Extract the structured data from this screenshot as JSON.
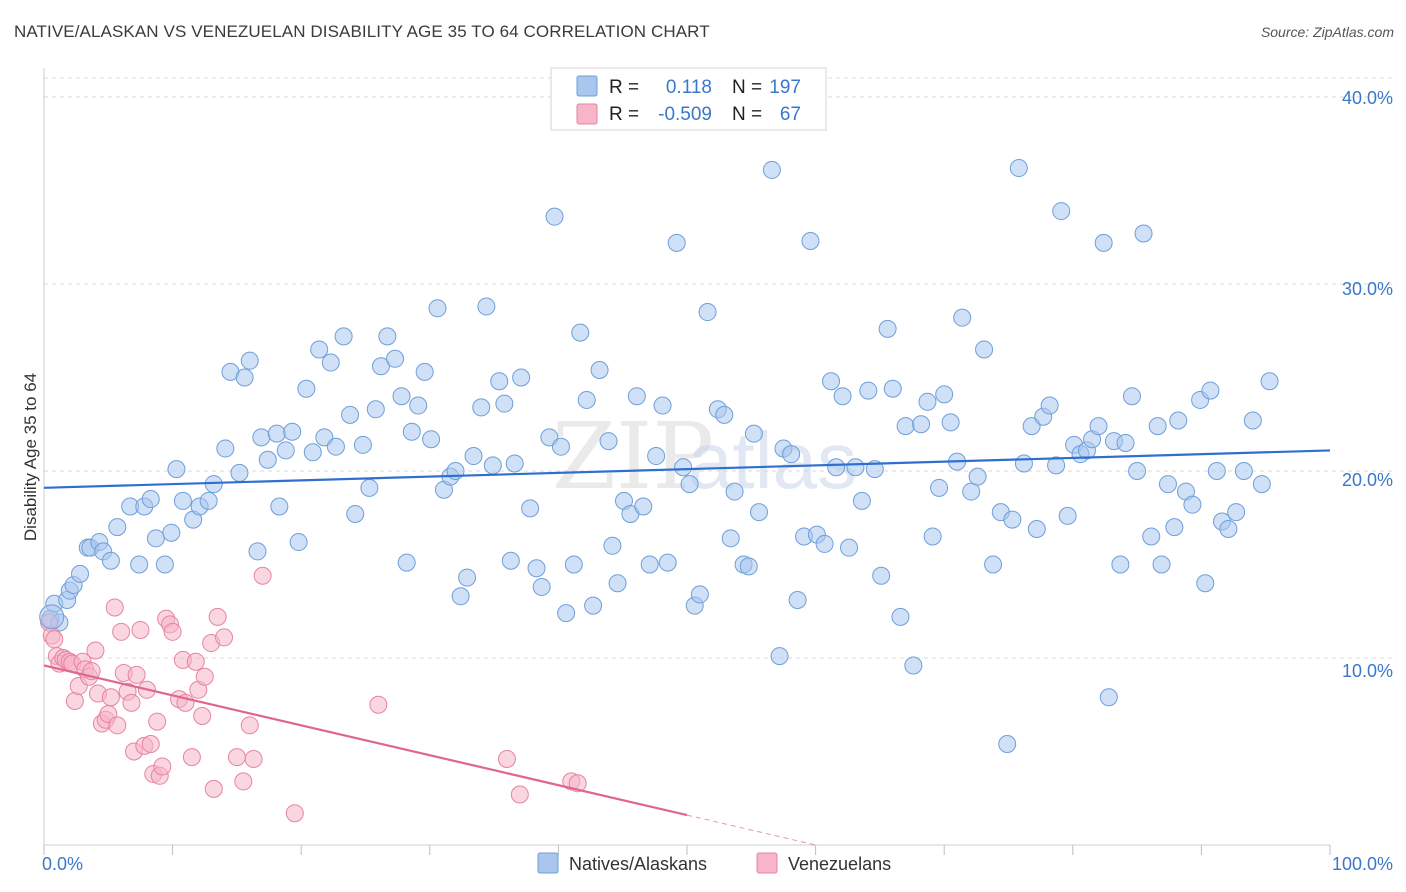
{
  "title": "NATIVE/ALASKAN VS VENEZUELAN DISABILITY AGE 35 TO 64 CORRELATION CHART",
  "source": "Source: ZipAtlas.com",
  "watermark": {
    "zip": "ZIP",
    "atlas": "atlas"
  },
  "colors": {
    "blue_fill": "#a9c6ee",
    "blue_stroke": "#6e9fd9",
    "blue_line": "#2f6fcf",
    "pink_fill": "#f6b5c9",
    "pink_stroke": "#e7859f",
    "pink_line": "#e0668f",
    "grid": "#d9d9d9",
    "tick_text": "#3a78c9"
  },
  "legend": {
    "rows": [
      {
        "r_label": "R =",
        "r_value": "0.118",
        "n_label": "N =",
        "n_value": "197"
      },
      {
        "r_label": "R =",
        "r_value": "-0.509",
        "n_label": "N =",
        "n_value": "67"
      }
    ]
  },
  "chart_data": {
    "type": "scatter",
    "title": "NATIVE/ALASKAN VS VENEZUELAN DISABILITY AGE 35 TO 64 CORRELATION CHART",
    "xlabel": "",
    "ylabel": "Disability Age 35 to 64",
    "xlim": [
      0,
      100
    ],
    "ylim": [
      0,
      40
    ],
    "x_tick_labels": [
      "0.0%",
      "100.0%"
    ],
    "y_ticks": [
      10,
      20,
      30,
      40
    ],
    "y_tick_labels": [
      "10.0%",
      "20.0%",
      "30.0%",
      "40.0%"
    ],
    "legend_placement": "bottom-center",
    "series": [
      {
        "name": "Natives/Alaskans",
        "r": 0.118,
        "n": 197,
        "trend": {
          "x": [
            0,
            100
          ],
          "y": [
            19.1,
            21.1
          ]
        },
        "points": [
          [
            0.5,
            12.1
          ],
          [
            0.8,
            12.9
          ],
          [
            1.2,
            11.9
          ],
          [
            1.8,
            13.1
          ],
          [
            2,
            13.6
          ],
          [
            2.3,
            13.9
          ],
          [
            2.8,
            14.5
          ],
          [
            3.4,
            15.9
          ],
          [
            3.6,
            15.9
          ],
          [
            4.3,
            16.2
          ],
          [
            4.6,
            15.7
          ],
          [
            5.2,
            15.2
          ],
          [
            5.7,
            17.0
          ],
          [
            6.7,
            18.1
          ],
          [
            7.4,
            15.0
          ],
          [
            7.8,
            18.1
          ],
          [
            8.3,
            18.5
          ],
          [
            8.7,
            16.4
          ],
          [
            9.4,
            15.0
          ],
          [
            9.9,
            16.7
          ],
          [
            10.3,
            20.1
          ],
          [
            10.8,
            18.4
          ],
          [
            11.6,
            17.4
          ],
          [
            12.1,
            18.1
          ],
          [
            12.8,
            18.4
          ],
          [
            13.2,
            19.3
          ],
          [
            14.1,
            21.2
          ],
          [
            14.5,
            25.3
          ],
          [
            15.2,
            19.9
          ],
          [
            15.6,
            25.0
          ],
          [
            16.0,
            25.9
          ],
          [
            16.6,
            15.7
          ],
          [
            16.9,
            21.8
          ],
          [
            17.4,
            20.6
          ],
          [
            18.1,
            22.0
          ],
          [
            18.3,
            18.1
          ],
          [
            18.8,
            21.1
          ],
          [
            19.3,
            22.1
          ],
          [
            19.8,
            16.2
          ],
          [
            20.4,
            24.4
          ],
          [
            20.9,
            21.0
          ],
          [
            21.4,
            26.5
          ],
          [
            21.8,
            21.8
          ],
          [
            22.3,
            25.8
          ],
          [
            22.7,
            21.3
          ],
          [
            23.3,
            27.2
          ],
          [
            23.8,
            23.0
          ],
          [
            24.2,
            17.7
          ],
          [
            24.8,
            21.4
          ],
          [
            25.3,
            19.1
          ],
          [
            25.8,
            23.3
          ],
          [
            26.2,
            25.6
          ],
          [
            26.7,
            27.2
          ],
          [
            27.3,
            26.0
          ],
          [
            27.8,
            24.0
          ],
          [
            28.2,
            15.1
          ],
          [
            28.6,
            22.1
          ],
          [
            29.1,
            23.5
          ],
          [
            29.6,
            25.3
          ],
          [
            30.1,
            21.7
          ],
          [
            30.6,
            28.7
          ],
          [
            31.1,
            19.0
          ],
          [
            31.6,
            19.7
          ],
          [
            32.0,
            20.0
          ],
          [
            32.4,
            13.3
          ],
          [
            32.9,
            14.3
          ],
          [
            33.4,
            20.8
          ],
          [
            34.0,
            23.4
          ],
          [
            34.4,
            28.8
          ],
          [
            34.9,
            20.3
          ],
          [
            35.4,
            24.8
          ],
          [
            35.8,
            23.6
          ],
          [
            36.3,
            15.2
          ],
          [
            36.6,
            20.4
          ],
          [
            37.1,
            25.0
          ],
          [
            37.8,
            18.0
          ],
          [
            38.3,
            14.8
          ],
          [
            38.7,
            13.8
          ],
          [
            39.3,
            21.8
          ],
          [
            39.7,
            33.6
          ],
          [
            40.2,
            21.3
          ],
          [
            40.6,
            12.4
          ],
          [
            41.2,
            15.0
          ],
          [
            41.7,
            27.4
          ],
          [
            42.2,
            23.8
          ],
          [
            42.7,
            12.8
          ],
          [
            43.2,
            25.4
          ],
          [
            43.9,
            21.6
          ],
          [
            44.2,
            16.0
          ],
          [
            44.6,
            14.0
          ],
          [
            45.1,
            18.4
          ],
          [
            45.6,
            17.7
          ],
          [
            46.1,
            24.0
          ],
          [
            46.6,
            18.1
          ],
          [
            47.1,
            15.0
          ],
          [
            47.6,
            20.8
          ],
          [
            48.1,
            23.5
          ],
          [
            48.5,
            15.1
          ],
          [
            49.2,
            32.2
          ],
          [
            49.7,
            20.2
          ],
          [
            50.2,
            19.3
          ],
          [
            50.6,
            12.8
          ],
          [
            51.0,
            13.4
          ],
          [
            51.6,
            28.5
          ],
          [
            52.4,
            23.3
          ],
          [
            52.9,
            23.0
          ],
          [
            53.4,
            16.4
          ],
          [
            53.7,
            18.9
          ],
          [
            54.4,
            15.0
          ],
          [
            54.8,
            14.9
          ],
          [
            55.2,
            22.0
          ],
          [
            55.6,
            17.8
          ],
          [
            56.6,
            36.1
          ],
          [
            57.2,
            10.1
          ],
          [
            57.5,
            21.2
          ],
          [
            58.1,
            20.9
          ],
          [
            58.6,
            13.1
          ],
          [
            59.1,
            16.5
          ],
          [
            59.6,
            32.3
          ],
          [
            60.1,
            16.6
          ],
          [
            60.7,
            16.1
          ],
          [
            61.2,
            24.8
          ],
          [
            61.6,
            20.2
          ],
          [
            62.1,
            24.0
          ],
          [
            62.6,
            15.9
          ],
          [
            63.1,
            20.2
          ],
          [
            63.6,
            18.4
          ],
          [
            64.1,
            24.3
          ],
          [
            64.6,
            20.1
          ],
          [
            65.1,
            14.4
          ],
          [
            65.6,
            27.6
          ],
          [
            66.0,
            24.4
          ],
          [
            66.6,
            12.2
          ],
          [
            67.0,
            22.4
          ],
          [
            67.6,
            9.6
          ],
          [
            68.2,
            22.5
          ],
          [
            68.7,
            23.7
          ],
          [
            69.1,
            16.5
          ],
          [
            69.6,
            19.1
          ],
          [
            70.0,
            24.1
          ],
          [
            70.5,
            22.6
          ],
          [
            71.0,
            20.5
          ],
          [
            71.4,
            28.2
          ],
          [
            72.1,
            18.9
          ],
          [
            72.6,
            19.7
          ],
          [
            73.1,
            26.5
          ],
          [
            73.8,
            15.0
          ],
          [
            74.4,
            17.8
          ],
          [
            74.9,
            5.4
          ],
          [
            75.3,
            17.4
          ],
          [
            75.8,
            36.2
          ],
          [
            76.2,
            20.4
          ],
          [
            76.8,
            22.4
          ],
          [
            77.2,
            16.9
          ],
          [
            77.7,
            22.9
          ],
          [
            78.2,
            23.5
          ],
          [
            78.7,
            20.3
          ],
          [
            79.1,
            33.9
          ],
          [
            79.6,
            17.6
          ],
          [
            80.1,
            21.4
          ],
          [
            80.6,
            20.9
          ],
          [
            81.1,
            21.1
          ],
          [
            81.5,
            21.7
          ],
          [
            82.0,
            22.4
          ],
          [
            82.4,
            32.2
          ],
          [
            82.8,
            7.9
          ],
          [
            83.2,
            21.6
          ],
          [
            83.7,
            15.0
          ],
          [
            84.1,
            21.5
          ],
          [
            84.6,
            24.0
          ],
          [
            85.0,
            20.0
          ],
          [
            85.5,
            32.7
          ],
          [
            86.1,
            16.5
          ],
          [
            86.6,
            22.4
          ],
          [
            86.9,
            15.0
          ],
          [
            87.4,
            19.3
          ],
          [
            87.9,
            17.0
          ],
          [
            88.2,
            22.7
          ],
          [
            88.8,
            18.9
          ],
          [
            89.3,
            18.2
          ],
          [
            89.9,
            23.8
          ],
          [
            90.3,
            14.0
          ],
          [
            90.7,
            24.3
          ],
          [
            91.2,
            20.0
          ],
          [
            91.6,
            17.3
          ],
          [
            92.1,
            16.9
          ],
          [
            92.7,
            17.8
          ],
          [
            93.3,
            20.0
          ],
          [
            94.0,
            22.7
          ],
          [
            94.7,
            19.3
          ],
          [
            95.3,
            24.8
          ]
        ]
      },
      {
        "name": "Venezuelans",
        "r": -0.509,
        "n": 67,
        "trend": {
          "x": [
            0,
            50
          ],
          "y": [
            9.6,
            1.6
          ],
          "dashed_extension": {
            "x": [
              50,
              60
            ],
            "y": [
              1.6,
              0.0
            ]
          }
        },
        "points": [
          [
            0.4,
            11.9
          ],
          [
            0.6,
            11.2
          ],
          [
            0.8,
            11.0
          ],
          [
            1,
            10.1
          ],
          [
            1.2,
            9.7
          ],
          [
            1.5,
            10.0
          ],
          [
            1.7,
            9.9
          ],
          [
            2.0,
            9.8
          ],
          [
            2.2,
            9.7
          ],
          [
            2.4,
            7.7
          ],
          [
            2.7,
            8.5
          ],
          [
            3.0,
            9.8
          ],
          [
            3.2,
            9.4
          ],
          [
            3.5,
            9.0
          ],
          [
            3.7,
            9.3
          ],
          [
            4.0,
            10.4
          ],
          [
            4.2,
            8.1
          ],
          [
            4.5,
            6.5
          ],
          [
            4.8,
            6.7
          ],
          [
            5.0,
            7.0
          ],
          [
            5.2,
            7.9
          ],
          [
            5.5,
            12.7
          ],
          [
            5.7,
            6.4
          ],
          [
            6.0,
            11.4
          ],
          [
            6.2,
            9.2
          ],
          [
            6.5,
            8.2
          ],
          [
            6.8,
            7.6
          ],
          [
            7.0,
            5.0
          ],
          [
            7.2,
            9.1
          ],
          [
            7.5,
            11.5
          ],
          [
            7.8,
            5.3
          ],
          [
            8.0,
            8.3
          ],
          [
            8.3,
            5.4
          ],
          [
            8.5,
            3.8
          ],
          [
            8.8,
            6.6
          ],
          [
            9.0,
            3.7
          ],
          [
            9.2,
            4.2
          ],
          [
            9.5,
            12.1
          ],
          [
            9.8,
            11.8
          ],
          [
            10.0,
            11.4
          ],
          [
            10.5,
            7.8
          ],
          [
            10.8,
            9.9
          ],
          [
            11.0,
            7.6
          ],
          [
            11.5,
            4.7
          ],
          [
            11.8,
            9.8
          ],
          [
            12.0,
            8.3
          ],
          [
            12.3,
            6.9
          ],
          [
            12.5,
            9.0
          ],
          [
            13.0,
            10.8
          ],
          [
            13.2,
            3.0
          ],
          [
            13.5,
            12.2
          ],
          [
            14.0,
            11.1
          ],
          [
            15.0,
            4.7
          ],
          [
            15.5,
            3.4
          ],
          [
            16.0,
            6.4
          ],
          [
            16.3,
            4.6
          ],
          [
            17.0,
            14.4
          ],
          [
            19.5,
            1.7
          ],
          [
            26.0,
            7.5
          ],
          [
            36.0,
            4.6
          ],
          [
            37.0,
            2.7
          ],
          [
            41.0,
            3.4
          ],
          [
            41.5,
            3.3
          ]
        ]
      }
    ]
  },
  "bottom_legend": [
    {
      "label": "Natives/Alaskans"
    },
    {
      "label": "Venezuelans"
    }
  ]
}
